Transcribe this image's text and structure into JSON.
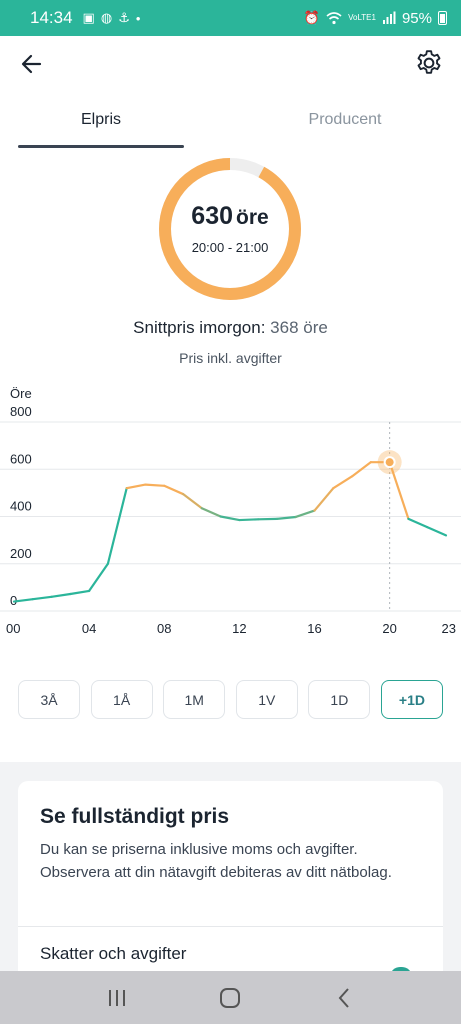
{
  "status_bar": {
    "time": "14:34",
    "battery": "95%",
    "network": "VoLTE1",
    "icons_left": [
      "image-icon",
      "globe-icon",
      "anchor-icon",
      "dot-icon"
    ],
    "icons_right": [
      "alarm-icon",
      "wifi-icon",
      "signal-icon",
      "battery-icon"
    ]
  },
  "header": {
    "back_icon": "arrow-left-icon",
    "settings_icon": "gear-icon"
  },
  "tabs": [
    {
      "label": "Elpris",
      "active": true
    },
    {
      "label": "Producent",
      "active": false
    }
  ],
  "current": {
    "value": "630",
    "unit": "öre",
    "time": "20:00 - 21:00",
    "ring_fraction": 0.92,
    "ring_color": "#f7ae5a"
  },
  "average": {
    "label": "Snittpris imorgon:",
    "value": "368 öre"
  },
  "subtitle": "Pris inkl. avgifter",
  "chart_data": {
    "type": "line",
    "ylabel": "Öre",
    "ylim": [
      0,
      800
    ],
    "yticks": [
      "0",
      "200",
      "400",
      "600",
      "800"
    ],
    "xticks": [
      "00",
      "04",
      "08",
      "12",
      "16",
      "20",
      "23"
    ],
    "x": [
      0,
      1,
      2,
      3,
      4,
      5,
      6,
      7,
      8,
      9,
      10,
      11,
      12,
      13,
      14,
      15,
      16,
      17,
      18,
      19,
      20,
      21,
      22,
      23
    ],
    "values": [
      40,
      50,
      60,
      72,
      85,
      200,
      520,
      535,
      530,
      495,
      435,
      400,
      385,
      388,
      390,
      398,
      425,
      520,
      570,
      630,
      630,
      390,
      355,
      320
    ],
    "selected_x": 20,
    "selected_value": 630,
    "colors": {
      "low": "#2bb59a",
      "high": "#f7ae5a",
      "grid": "#e6e8eb",
      "marker": "#f7ae5a"
    }
  },
  "ranges": [
    {
      "label": "3Å",
      "active": false
    },
    {
      "label": "1Å",
      "active": false
    },
    {
      "label": "1M",
      "active": false
    },
    {
      "label": "1V",
      "active": false
    },
    {
      "label": "1D",
      "active": false
    },
    {
      "label": "+1D",
      "active": true
    }
  ],
  "card": {
    "title": "Se fullständigt pris",
    "text": "Du kan se priserna inklusive moms och avgifter. Observera att din nätavgift debiteras av ditt nätbolag.",
    "row_label": "Skatter och avgifter"
  },
  "navbar": {
    "recents_icon": "recents-icon",
    "home_icon": "home-icon",
    "back_icon": "back-chevron-icon"
  }
}
